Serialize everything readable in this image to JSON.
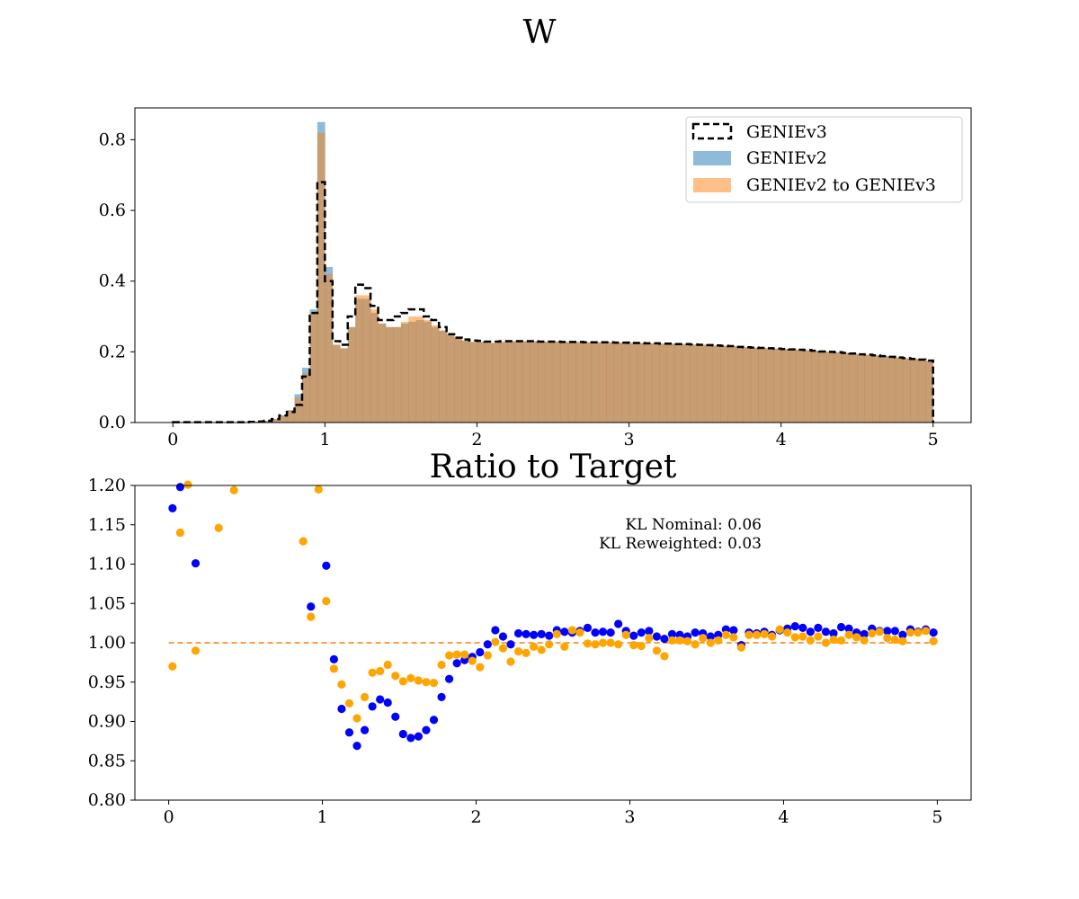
{
  "suptitle": "W",
  "chart_data": [
    {
      "type": "bar",
      "subtype": "histogram",
      "title": "",
      "xlabel": "",
      "ylabel": "",
      "xlim": [
        -0.25,
        5.25
      ],
      "ylim": [
        0,
        0.89
      ],
      "xticks": [
        "0",
        "1",
        "2",
        "3",
        "4",
        "5"
      ],
      "yticks": [
        "0.0",
        "0.2",
        "0.4",
        "0.6",
        "0.8"
      ],
      "legend_position": "upper right",
      "bin_edges_range": [
        0,
        5
      ],
      "bin_width": 0.05,
      "series": [
        {
          "name": "GENIEv3",
          "style": "step-dashed",
          "color": "#000000",
          "values": [
            0.001,
            0.001,
            0.001,
            0.001,
            0.001,
            0.001,
            0.001,
            0.001,
            0.001,
            0.001,
            0.002,
            0.003,
            0.005,
            0.01,
            0.02,
            0.03,
            0.05,
            0.13,
            0.31,
            0.68,
            0.4,
            0.23,
            0.22,
            0.3,
            0.39,
            0.38,
            0.33,
            0.29,
            0.29,
            0.3,
            0.31,
            0.32,
            0.32,
            0.3,
            0.29,
            0.27,
            0.25,
            0.24,
            0.235,
            0.232,
            0.231,
            0.229,
            0.229,
            0.23,
            0.23,
            0.23,
            0.23,
            0.23,
            0.229,
            0.229,
            0.229,
            0.228,
            0.228,
            0.228,
            0.227,
            0.227,
            0.227,
            0.227,
            0.226,
            0.226,
            0.225,
            0.225,
            0.224,
            0.224,
            0.223,
            0.223,
            0.222,
            0.222,
            0.221,
            0.22,
            0.219,
            0.218,
            0.217,
            0.216,
            0.214,
            0.213,
            0.212,
            0.211,
            0.21,
            0.209,
            0.208,
            0.207,
            0.206,
            0.205,
            0.203,
            0.201,
            0.2,
            0.199,
            0.197,
            0.195,
            0.193,
            0.192,
            0.19,
            0.188,
            0.186,
            0.184,
            0.182,
            0.18,
            0.178,
            0.175
          ]
        },
        {
          "name": "GENIEv2",
          "style": "filled",
          "color": "#1f77b4",
          "opacity": 0.5,
          "values": [
            0.001,
            0.001,
            0.001,
            0.001,
            0.001,
            0.001,
            0.001,
            0.001,
            0.001,
            0.001,
            0.002,
            0.003,
            0.005,
            0.01,
            0.02,
            0.035,
            0.08,
            0.155,
            0.32,
            0.85,
            0.44,
            0.22,
            0.21,
            0.27,
            0.35,
            0.35,
            0.31,
            0.28,
            0.27,
            0.27,
            0.28,
            0.285,
            0.29,
            0.285,
            0.27,
            0.26,
            0.25,
            0.24,
            0.232,
            0.228,
            0.228,
            0.225,
            0.225,
            0.228,
            0.23,
            0.23,
            0.23,
            0.23,
            0.229,
            0.229,
            0.229,
            0.228,
            0.228,
            0.228,
            0.227,
            0.227,
            0.227,
            0.227,
            0.226,
            0.226,
            0.225,
            0.225,
            0.224,
            0.224,
            0.223,
            0.223,
            0.222,
            0.222,
            0.221,
            0.22,
            0.219,
            0.218,
            0.217,
            0.216,
            0.214,
            0.213,
            0.212,
            0.211,
            0.21,
            0.209,
            0.208,
            0.207,
            0.206,
            0.205,
            0.203,
            0.201,
            0.2,
            0.199,
            0.197,
            0.195,
            0.193,
            0.192,
            0.19,
            0.188,
            0.186,
            0.184,
            0.182,
            0.18,
            0.178,
            0.175
          ]
        },
        {
          "name": "GENIEv2 to GENIEv3",
          "style": "filled",
          "color": "#ff7f0e",
          "opacity": 0.5,
          "values": [
            0.001,
            0.001,
            0.001,
            0.001,
            0.001,
            0.001,
            0.001,
            0.001,
            0.001,
            0.001,
            0.002,
            0.003,
            0.005,
            0.01,
            0.02,
            0.035,
            0.07,
            0.14,
            0.31,
            0.82,
            0.42,
            0.22,
            0.21,
            0.27,
            0.36,
            0.36,
            0.32,
            0.28,
            0.27,
            0.27,
            0.285,
            0.3,
            0.3,
            0.29,
            0.275,
            0.26,
            0.25,
            0.24,
            0.232,
            0.228,
            0.228,
            0.225,
            0.225,
            0.228,
            0.23,
            0.23,
            0.23,
            0.23,
            0.229,
            0.229,
            0.229,
            0.228,
            0.228,
            0.228,
            0.227,
            0.227,
            0.227,
            0.227,
            0.226,
            0.226,
            0.225,
            0.225,
            0.224,
            0.224,
            0.223,
            0.223,
            0.222,
            0.222,
            0.221,
            0.22,
            0.219,
            0.218,
            0.217,
            0.216,
            0.214,
            0.213,
            0.212,
            0.211,
            0.21,
            0.209,
            0.208,
            0.207,
            0.206,
            0.205,
            0.203,
            0.201,
            0.2,
            0.199,
            0.197,
            0.195,
            0.193,
            0.192,
            0.19,
            0.188,
            0.186,
            0.184,
            0.182,
            0.18,
            0.178,
            0.175
          ]
        }
      ]
    },
    {
      "type": "scatter",
      "title": "Ratio to Target",
      "xlabel": "",
      "ylabel": "",
      "xlim": [
        -0.22,
        5.22
      ],
      "ylim": [
        0.8,
        1.2
      ],
      "xticks": [
        "0",
        "1",
        "2",
        "3",
        "4",
        "5"
      ],
      "yticks": [
        "0.80",
        "0.85",
        "0.90",
        "0.95",
        "1.00",
        "1.05",
        "1.10",
        "1.15",
        "1.20"
      ],
      "reference_line": {
        "y": 1.0,
        "style": "dashed",
        "color": "#ff7f0e"
      },
      "annotations": [
        "KL Nominal: 0.06",
        "KL Reweighted: 0.03"
      ],
      "series": [
        {
          "name": "",
          "color": "#0000ff",
          "points": [
            [
              0.025,
              1.171
            ],
            [
              0.075,
              1.198
            ],
            [
              0.175,
              1.101
            ],
            [
              0.925,
              1.046
            ],
            [
              1.025,
              1.098
            ],
            [
              1.075,
              0.979
            ],
            [
              1.125,
              0.916
            ],
            [
              1.175,
              0.886
            ],
            [
              1.225,
              0.869
            ],
            [
              1.275,
              0.889
            ],
            [
              1.325,
              0.919
            ],
            [
              1.375,
              0.928
            ],
            [
              1.425,
              0.924
            ],
            [
              1.475,
              0.906
            ],
            [
              1.525,
              0.884
            ],
            [
              1.575,
              0.879
            ],
            [
              1.625,
              0.881
            ],
            [
              1.675,
              0.889
            ],
            [
              1.725,
              0.902
            ],
            [
              1.775,
              0.931
            ],
            [
              1.825,
              0.954
            ],
            [
              1.875,
              0.974
            ],
            [
              1.925,
              0.978
            ],
            [
              1.975,
              0.982
            ],
            [
              2.025,
              0.988
            ],
            [
              2.075,
              0.998
            ],
            [
              2.125,
              1.016
            ],
            [
              2.175,
              1.008
            ],
            [
              2.225,
              0.998
            ],
            [
              2.275,
              1.012
            ],
            [
              2.325,
              1.011
            ],
            [
              2.375,
              1.01
            ],
            [
              2.425,
              1.011
            ],
            [
              2.475,
              1.009
            ],
            [
              2.525,
              1.016
            ],
            [
              2.575,
              1.014
            ],
            [
              2.625,
              1.013
            ],
            [
              2.675,
              1.015
            ],
            [
              2.725,
              1.019
            ],
            [
              2.775,
              1.013
            ],
            [
              2.825,
              1.014
            ],
            [
              2.875,
              1.013
            ],
            [
              2.925,
              1.024
            ],
            [
              2.975,
              1.015
            ],
            [
              3.025,
              1.009
            ],
            [
              3.075,
              1.013
            ],
            [
              3.125,
              1.015
            ],
            [
              3.175,
              1.008
            ],
            [
              3.225,
              1.005
            ],
            [
              3.275,
              1.011
            ],
            [
              3.325,
              1.01
            ],
            [
              3.375,
              1.008
            ],
            [
              3.425,
              1.013
            ],
            [
              3.475,
              1.012
            ],
            [
              3.525,
              1.008
            ],
            [
              3.575,
              1.01
            ],
            [
              3.625,
              1.017
            ],
            [
              3.675,
              1.016
            ],
            [
              3.725,
              0.997
            ],
            [
              3.775,
              1.013
            ],
            [
              3.825,
              1.012
            ],
            [
              3.875,
              1.014
            ],
            [
              3.925,
              1.01
            ],
            [
              3.975,
              1.016
            ],
            [
              4.025,
              1.018
            ],
            [
              4.075,
              1.021
            ],
            [
              4.125,
              1.019
            ],
            [
              4.175,
              1.014
            ],
            [
              4.225,
              1.019
            ],
            [
              4.275,
              1.014
            ],
            [
              4.325,
              1.012
            ],
            [
              4.375,
              1.02
            ],
            [
              4.425,
              1.018
            ],
            [
              4.475,
              1.013
            ],
            [
              4.525,
              1.011
            ],
            [
              4.575,
              1.018
            ],
            [
              4.625,
              1.015
            ],
            [
              4.675,
              1.015
            ],
            [
              4.725,
              1.015
            ],
            [
              4.775,
              1.01
            ],
            [
              4.825,
              1.017
            ],
            [
              4.875,
              1.014
            ],
            [
              4.925,
              1.017
            ],
            [
              4.975,
              1.013
            ]
          ]
        },
        {
          "name": "",
          "color": "#ffa500",
          "points": [
            [
              0.025,
              0.97
            ],
            [
              0.075,
              1.14
            ],
            [
              0.125,
              1.201
            ],
            [
              0.175,
              0.99
            ],
            [
              0.325,
              1.146
            ],
            [
              0.425,
              1.194
            ],
            [
              0.875,
              1.129
            ],
            [
              0.925,
              1.033
            ],
            [
              0.975,
              1.195
            ],
            [
              1.025,
              1.053
            ],
            [
              1.075,
              0.967
            ],
            [
              1.125,
              0.947
            ],
            [
              1.175,
              0.923
            ],
            [
              1.225,
              0.904
            ],
            [
              1.275,
              0.931
            ],
            [
              1.325,
              0.962
            ],
            [
              1.375,
              0.964
            ],
            [
              1.425,
              0.972
            ],
            [
              1.475,
              0.958
            ],
            [
              1.525,
              0.951
            ],
            [
              1.575,
              0.955
            ],
            [
              1.625,
              0.952
            ],
            [
              1.675,
              0.95
            ],
            [
              1.725,
              0.949
            ],
            [
              1.775,
              0.972
            ],
            [
              1.825,
              0.984
            ],
            [
              1.875,
              0.985
            ],
            [
              1.925,
              0.985
            ],
            [
              1.975,
              0.977
            ],
            [
              2.025,
              0.969
            ],
            [
              2.075,
              0.984
            ],
            [
              2.125,
              1.001
            ],
            [
              2.175,
              0.993
            ],
            [
              2.225,
              0.976
            ],
            [
              2.275,
              0.989
            ],
            [
              2.325,
              0.987
            ],
            [
              2.375,
              0.995
            ],
            [
              2.425,
              0.991
            ],
            [
              2.475,
              0.998
            ],
            [
              2.525,
              1.011
            ],
            [
              2.575,
              0.995
            ],
            [
              2.625,
              1.016
            ],
            [
              2.675,
              1.013
            ],
            [
              2.725,
              0.999
            ],
            [
              2.775,
              0.998
            ],
            [
              2.825,
              1.0
            ],
            [
              2.875,
              1.0
            ],
            [
              2.925,
              0.998
            ],
            [
              2.975,
              1.01
            ],
            [
              3.025,
              0.997
            ],
            [
              3.075,
              0.996
            ],
            [
              3.125,
              1.006
            ],
            [
              3.175,
              0.99
            ],
            [
              3.225,
              0.983
            ],
            [
              3.275,
              1.003
            ],
            [
              3.325,
              1.003
            ],
            [
              3.375,
              1.002
            ],
            [
              3.425,
              0.998
            ],
            [
              3.475,
              1.006
            ],
            [
              3.525,
              1.0
            ],
            [
              3.575,
              1.003
            ],
            [
              3.625,
              1.01
            ],
            [
              3.675,
              1.007
            ],
            [
              3.725,
              0.994
            ],
            [
              3.775,
              1.01
            ],
            [
              3.825,
              1.01
            ],
            [
              3.875,
              1.011
            ],
            [
              3.925,
              1.008
            ],
            [
              3.975,
              1.017
            ],
            [
              4.025,
              1.013
            ],
            [
              4.075,
              1.007
            ],
            [
              4.125,
              1.008
            ],
            [
              4.175,
              1.003
            ],
            [
              4.225,
              1.008
            ],
            [
              4.275,
              1.0
            ],
            [
              4.325,
              1.004
            ],
            [
              4.375,
              1.003
            ],
            [
              4.425,
              1.01
            ],
            [
              4.475,
              1.007
            ],
            [
              4.525,
              1.003
            ],
            [
              4.575,
              1.012
            ],
            [
              4.625,
              1.014
            ],
            [
              4.675,
              1.006
            ],
            [
              4.725,
              1.004
            ],
            [
              4.775,
              1.002
            ],
            [
              4.825,
              1.013
            ],
            [
              4.875,
              1.013
            ],
            [
              4.925,
              1.015
            ],
            [
              4.975,
              1.002
            ]
          ]
        }
      ]
    }
  ]
}
